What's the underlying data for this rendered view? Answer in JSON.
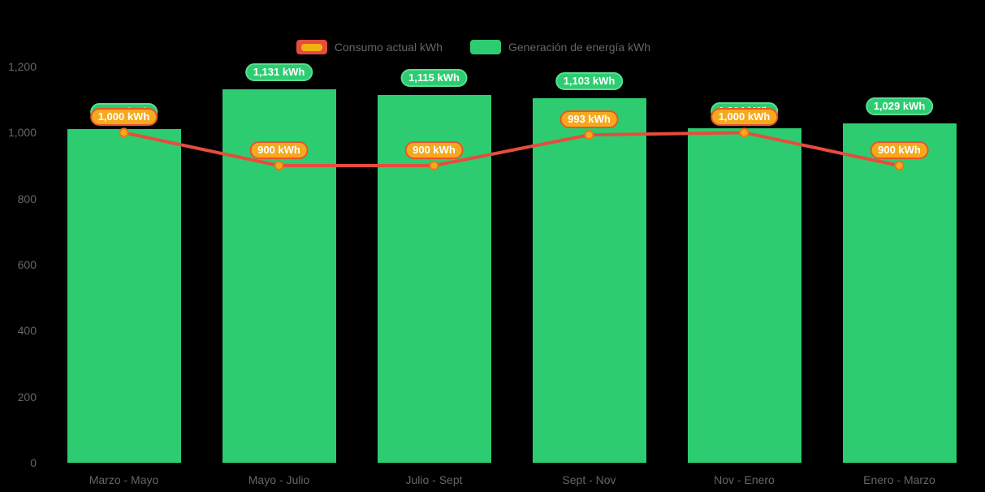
{
  "chart_data": {
    "type": "combo",
    "categories": [
      "Marzo - Mayo",
      "Mayo - Julio",
      "Julio - Sept",
      "Sept - Nov",
      "Nov - Enero",
      "Enero - Marzo"
    ],
    "series": [
      {
        "name": "Generación de energía kWh",
        "type": "bar",
        "color": "#2ecc71",
        "values": [
          1010,
          1131,
          1115,
          1103,
          1014,
          1029
        ],
        "labels": [
          "1,010 kWh",
          "1,131 kWh",
          "1,115 kWh",
          "1,103 kWh",
          "1,014 kWh",
          "1,029 kWh"
        ]
      },
      {
        "name": "Consumo actual kWh",
        "type": "line",
        "color": "#e74c3c",
        "point_fill": "#f6a821",
        "point_stroke": "#e87613",
        "values": [
          1000,
          900,
          900,
          993,
          1000,
          900
        ],
        "labels": [
          "1,000 kWh",
          "900 kWh",
          "900 kWh",
          "993 kWh",
          "1,000 kWh",
          "900 kWh"
        ]
      }
    ],
    "ylim": [
      0,
      1200
    ],
    "yticks": [
      "0",
      "200",
      "400",
      "600",
      "800",
      "1,000",
      "1,200"
    ],
    "grid": false,
    "legend_position": "top",
    "colors": {
      "background": "#000000",
      "axis_text": "#666666",
      "bar_label_bg": "#2ecc71",
      "bar_label_border": "#57de92",
      "line_label_bg": "#f5a91f",
      "line_label_border": "#e8552b",
      "legend_line_outer": "#e74c3c",
      "legend_line_inner": "#f2b211"
    }
  }
}
